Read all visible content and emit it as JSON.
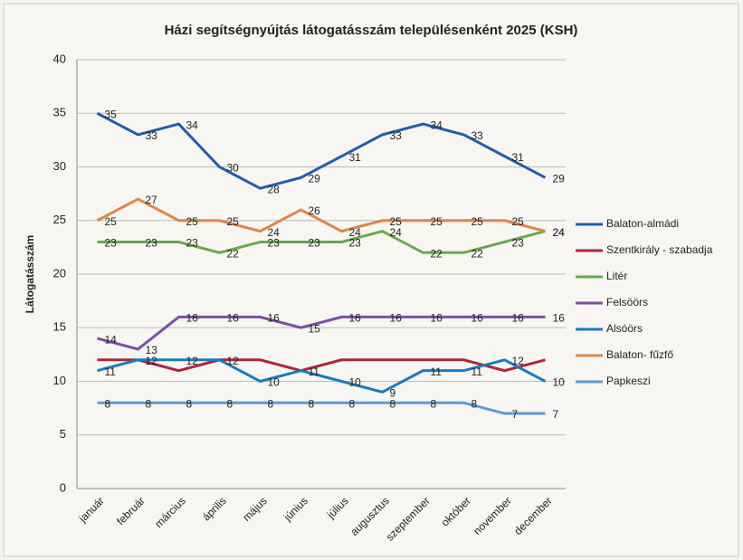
{
  "chart_data": {
    "type": "line",
    "title": "Házi segítségnyújtás látogatásszám településenként 2025 (KSH)",
    "y_label": "Látogatásszám",
    "categories": [
      "január",
      "február",
      "március",
      "április",
      "május",
      "június",
      "július",
      "augusztus",
      "szeptember",
      "október",
      "november",
      "december"
    ],
    "ylim": [
      0,
      40
    ],
    "yticks": [
      0,
      5,
      10,
      15,
      20,
      25,
      30,
      35,
      40
    ],
    "grid": true,
    "legend": "right",
    "series": [
      {
        "name": "Balaton-almádi",
        "color": "#1f5fa8",
        "values": [
          35,
          33,
          34,
          30,
          28,
          29,
          31,
          33,
          34,
          33,
          31,
          29
        ],
        "show_labels": true
      },
      {
        "name": "Szentkirály - szabadja",
        "color": "#b0243a",
        "values": [
          12,
          12,
          11,
          12,
          12,
          11,
          12,
          12,
          12,
          12,
          11,
          12
        ],
        "show_labels": false
      },
      {
        "name": "Litér",
        "color": "#6aa84f",
        "values": [
          23,
          23,
          23,
          22,
          23,
          23,
          23,
          24,
          22,
          22,
          23,
          24
        ],
        "show_labels": true
      },
      {
        "name": "Felsöörs",
        "color": "#7b4fa6",
        "values": [
          14,
          13,
          16,
          16,
          16,
          15,
          16,
          16,
          16,
          16,
          16,
          16
        ],
        "show_labels": true
      },
      {
        "name": "Alsóörs",
        "color": "#1a7bbf",
        "values": [
          11,
          12,
          12,
          12,
          10,
          11,
          10,
          9,
          11,
          11,
          12,
          10
        ],
        "show_labels": true
      },
      {
        "name": "Balaton-  fűzfő",
        "color": "#e0854a",
        "values": [
          25,
          27,
          25,
          25,
          24,
          26,
          24,
          25,
          25,
          25,
          25,
          24
        ],
        "show_labels": true
      },
      {
        "name": "Papkeszi",
        "color": "#5b9bd5",
        "values": [
          8,
          8,
          8,
          8,
          8,
          8,
          8,
          8,
          8,
          8,
          7,
          7
        ],
        "show_labels": true
      }
    ]
  }
}
